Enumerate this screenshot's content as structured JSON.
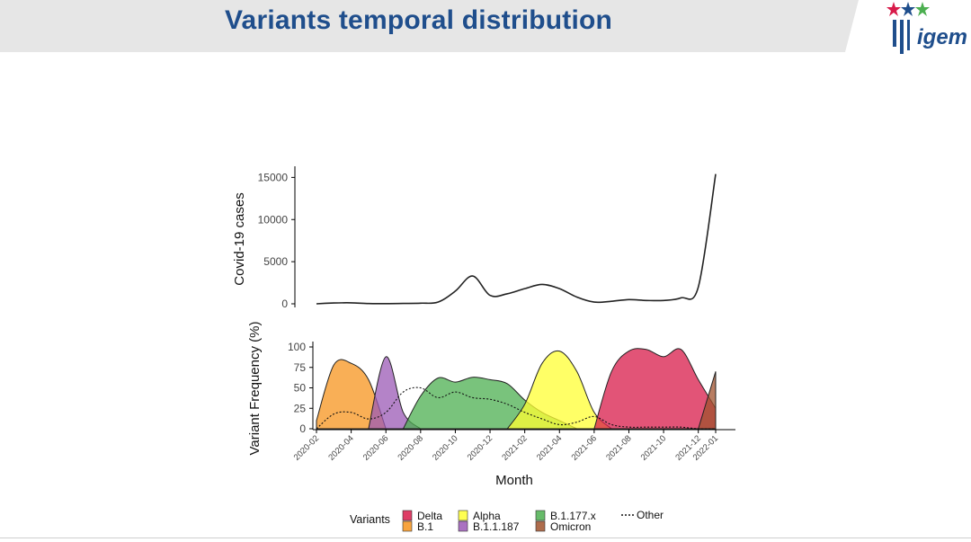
{
  "slide": {
    "title": "Variants temporal distribution",
    "logo_text": "igem"
  },
  "colors": {
    "title": "#1f4e8c",
    "banner": "#e6e6e6",
    "Delta": "#d81b4a",
    "B.1": "#f7941d",
    "Alpha": "#ffff33",
    "B.1.1.187": "#9b59b6",
    "B.1.177.x": "#4caf50",
    "Omicron": "#a0522d"
  },
  "chart_data": [
    {
      "type": "line",
      "ylabel": "Covid-19 cases",
      "xlabel": "",
      "ylim": [
        0,
        16000
      ],
      "yticks": [
        "0",
        "5000",
        "10000",
        "15000"
      ],
      "series": [
        {
          "x": [
            "2020-02",
            "2020-03",
            "2020-04",
            "2020-05",
            "2020-06",
            "2020-07",
            "2020-08",
            "2020-09",
            "2020-10",
            "2020-11",
            "2020-12",
            "2021-01",
            "2021-02",
            "2021-03",
            "2021-04",
            "2021-05",
            "2021-06",
            "2021-07",
            "2021-08",
            "2021-09",
            "2021-10",
            "2021-11",
            "2021-12",
            "2022-01"
          ],
          "y": [
            0,
            100,
            120,
            30,
            20,
            40,
            80,
            200,
            1500,
            3300,
            1000,
            1200,
            1800,
            2300,
            1800,
            800,
            200,
            300,
            500,
            400,
            400,
            700,
            2000,
            15400
          ]
        }
      ]
    },
    {
      "type": "area",
      "ylabel": "Variant Frequency (%)",
      "xlabel": "Month",
      "ylim": [
        0,
        100
      ],
      "yticks": [
        "0",
        "25",
        "50",
        "75",
        "100"
      ],
      "xticks": [
        "2020-02",
        "2020-04",
        "2020-06",
        "2020-08",
        "2020-10",
        "2020-12",
        "2021-02",
        "2021-04",
        "2021-06",
        "2021-08",
        "2021-10",
        "2021-12",
        "2022-01"
      ],
      "legend_title": "Variants",
      "legend_position": "bottom",
      "series": [
        {
          "name": "B.1",
          "x": [
            "2020-02",
            "2020-03",
            "2020-04",
            "2020-05",
            "2020-06"
          ],
          "y": [
            10,
            78,
            80,
            60,
            0
          ]
        },
        {
          "name": "B.1.1.187",
          "x": [
            "2020-05",
            "2020-06",
            "2020-07",
            "2020-08"
          ],
          "y": [
            0,
            88,
            20,
            0
          ]
        },
        {
          "name": "B.1.177.x",
          "x": [
            "2020-07",
            "2020-08",
            "2020-09",
            "2020-10",
            "2020-11",
            "2020-12",
            "2021-01",
            "2021-02",
            "2021-03",
            "2021-04",
            "2021-05"
          ],
          "y": [
            0,
            40,
            62,
            57,
            63,
            60,
            55,
            35,
            20,
            10,
            0
          ]
        },
        {
          "name": "Alpha",
          "x": [
            "2021-01",
            "2021-02",
            "2021-03",
            "2021-04",
            "2021-05",
            "2021-06",
            "2021-07"
          ],
          "y": [
            0,
            30,
            80,
            95,
            70,
            20,
            0
          ]
        },
        {
          "name": "Delta",
          "x": [
            "2021-06",
            "2021-07",
            "2021-08",
            "2021-09",
            "2021-10",
            "2021-11",
            "2021-12",
            "2022-01"
          ],
          "y": [
            0,
            70,
            95,
            97,
            88,
            97,
            60,
            25
          ]
        },
        {
          "name": "Omicron",
          "x": [
            "2021-12",
            "2022-01"
          ],
          "y": [
            0,
            70
          ]
        },
        {
          "name": "Other",
          "x": [
            "2020-02",
            "2020-03",
            "2020-04",
            "2020-05",
            "2020-06",
            "2020-07",
            "2020-08",
            "2020-09",
            "2020-10",
            "2020-11",
            "2020-12",
            "2021-01",
            "2021-02",
            "2021-03",
            "2021-04",
            "2021-05",
            "2021-06",
            "2021-07",
            "2021-08",
            "2021-09",
            "2021-10",
            "2021-11",
            "2021-12",
            "2022-01"
          ],
          "y": [
            0,
            18,
            20,
            12,
            20,
            45,
            50,
            38,
            45,
            38,
            36,
            30,
            20,
            12,
            5,
            8,
            15,
            5,
            2,
            2,
            2,
            2,
            0,
            0
          ]
        }
      ],
      "legend": [
        "Delta",
        "B.1",
        "Alpha",
        "B.1.1.187",
        "B.1.177.x",
        "Omicron",
        "Other"
      ]
    }
  ]
}
